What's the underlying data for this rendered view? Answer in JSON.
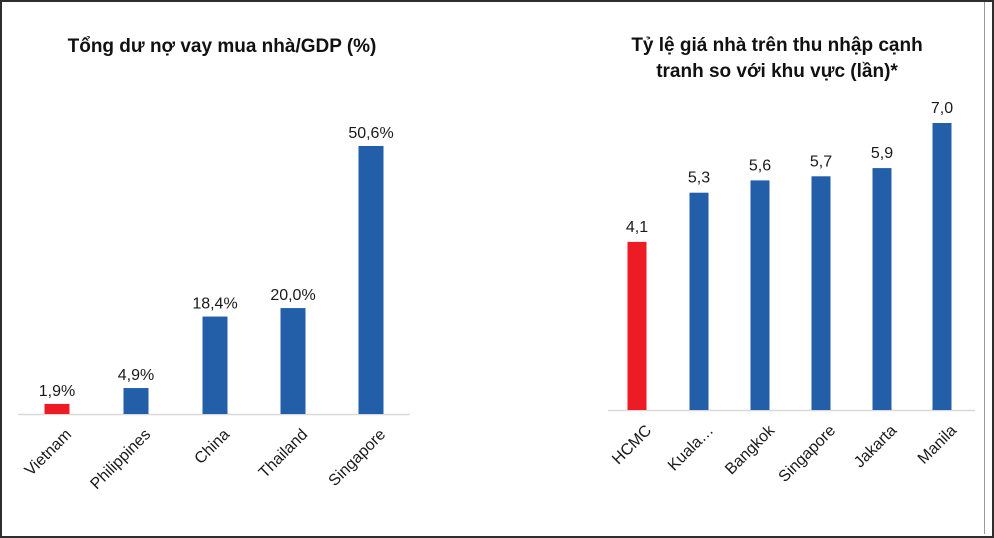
{
  "colors": {
    "highlight": "#ED1C24",
    "bar": "#235FA8",
    "axis": "#D9D9D9"
  },
  "chart_data": [
    {
      "type": "bar",
      "title": "Tổng dư nợ vay mua nhà/GDP (%)",
      "xlabel": "",
      "ylabel": "",
      "categories": [
        "Vietnam",
        "Philippines",
        "China",
        "Thailand",
        "Singapore"
      ],
      "values": [
        1.9,
        4.9,
        18.4,
        20.0,
        50.6
      ],
      "value_labels": [
        "1,9%",
        "4,9%",
        "18,4%",
        "20,0%",
        "50,6%"
      ],
      "highlight_index": 0,
      "ylim": [
        0,
        50.6
      ],
      "grid": false,
      "legend": "none"
    },
    {
      "type": "bar",
      "title_lines": [
        "Tỷ lệ giá nhà trên thu nhập cạnh",
        "tranh so với khu vực (lần)*"
      ],
      "title": "Tỷ lệ giá nhà trên thu nhập cạnh tranh so với khu vực (lần)*",
      "xlabel": "",
      "ylabel": "",
      "categories": [
        "HCMC",
        "Kuala…",
        "Bangkok",
        "Singapore",
        "Jakarta",
        "Manila"
      ],
      "values": [
        4.1,
        5.3,
        5.6,
        5.7,
        5.9,
        7.0
      ],
      "value_labels": [
        "4,1",
        "5,3",
        "5,6",
        "5,7",
        "5,9",
        "7,0"
      ],
      "highlight_index": 0,
      "ylim": [
        0,
        7.0
      ],
      "grid": false,
      "legend": "none"
    }
  ]
}
